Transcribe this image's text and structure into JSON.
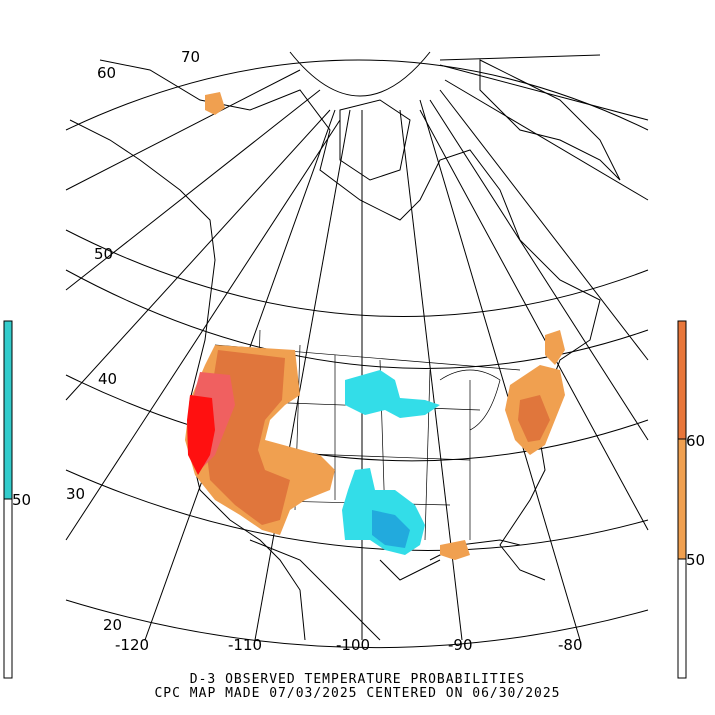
{
  "title": "D-3 OBSERVED TEMPERATURE PROBABILITIES",
  "subtitle": "CPC MAP MADE 07/03/2025 CENTERED ON 06/30/2025",
  "longitude_labels": [
    "-120",
    "-110",
    "-100",
    "-90",
    "-80"
  ],
  "latitude_labels": [
    "20",
    "30",
    "40",
    "50",
    "60",
    "70"
  ],
  "legend_below": {
    "label": "50",
    "color": "#33cccc"
  },
  "legend_above": {
    "labels": [
      "50",
      "60"
    ],
    "colors": [
      "#f0a050",
      "#e8763a"
    ]
  },
  "colors": {
    "above_50": "#f0a050",
    "above_60": "#e0763c",
    "above_70": "#f06060",
    "above_80": "#ff1010",
    "below_50": "#33dde8",
    "below_60": "#22aadd"
  }
}
